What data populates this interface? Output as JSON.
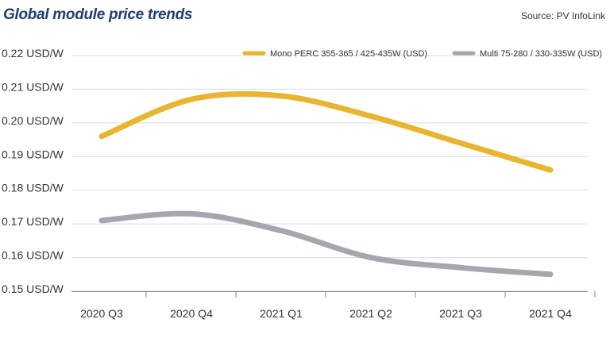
{
  "header": {
    "title": "Global module price trends",
    "source": "Source: PV InfoLink"
  },
  "colors": {
    "mono": "#e8b530",
    "multi": "#a4a8ae",
    "grid": "#dcdcdc",
    "title": "#1f3f73"
  },
  "chart_data": {
    "type": "line",
    "title": "Global module price trends",
    "categories": [
      "2020 Q3",
      "2020 Q4",
      "2021 Q1",
      "2021 Q2",
      "2021 Q3",
      "2021 Q4"
    ],
    "ylim": [
      0.15,
      0.22
    ],
    "yticks": [
      "0.22 USD/W",
      "0.21 USD/W",
      "0.20 USD/W",
      "0.19 USD/W",
      "0.18 USD/W",
      "0.17 USD/W",
      "0.16 USD/W",
      "0.15 USD/W"
    ],
    "grid": "horizontal",
    "legend_position": "top-right",
    "series": [
      {
        "name": "Mono PERC 355-365 / 425-435W (USD)",
        "values": [
          0.196,
          0.207,
          0.208,
          0.202,
          0.194,
          0.186
        ]
      },
      {
        "name": "Multi 75-280 / 330-335W (USD)",
        "values": [
          0.171,
          0.173,
          0.168,
          0.16,
          0.157,
          0.155
        ]
      }
    ]
  }
}
